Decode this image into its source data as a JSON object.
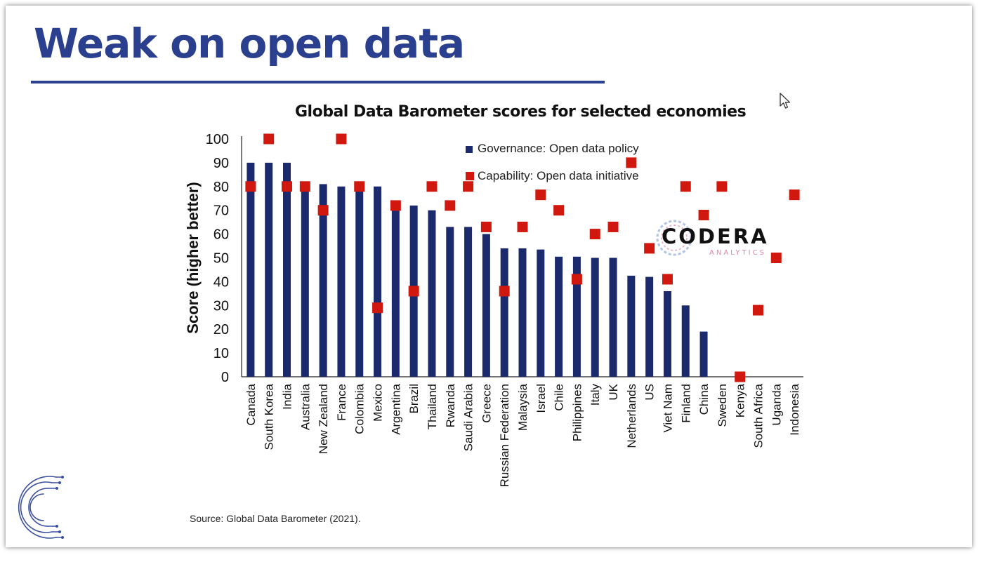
{
  "slide": {
    "title": "Weak on open data",
    "source": "Source: Global Data Barometer (2021).",
    "accent_color": "#2b3f8f"
  },
  "watermark": {
    "text": "CODERA",
    "subtext": "ANALYTICS"
  },
  "icons": {
    "cursor": "mouse-pointer-icon",
    "logo": "codera-c-logo-icon"
  },
  "chart_data": {
    "type": "bar",
    "title": "Global Data Barometer scores for selected economies",
    "ylabel": "Score (higher better)",
    "xlabel": "",
    "ylim": [
      0,
      100
    ],
    "yticks": [
      0,
      10,
      20,
      30,
      40,
      50,
      60,
      70,
      80,
      90,
      100
    ],
    "grid": false,
    "legend_position": "top-center",
    "categories": [
      "Canada",
      "South Korea",
      "India",
      "Australia",
      "New Zealand",
      "France",
      "Colombia",
      "Mexico",
      "Argentina",
      "Brazil",
      "Thailand",
      "Rwanda",
      "Saudi Arabia",
      "Greece",
      "Russian Federation",
      "Malaysia",
      "Israel",
      "Chile",
      "Philippines",
      "Italy",
      "UK",
      "Netherlands",
      "US",
      "Viet Nam",
      "Finland",
      "China",
      "Sweden",
      "Kenya",
      "South Africa",
      "Uganda",
      "Indonesia"
    ],
    "series": [
      {
        "name": "Governance: Open data policy",
        "type": "bar",
        "color": "#1a2a6c",
        "values": [
          90,
          90,
          90,
          80,
          81,
          80,
          80,
          80,
          72,
          72,
          70,
          63,
          63,
          60,
          54,
          54,
          53.5,
          50.5,
          50.5,
          50,
          50,
          42.5,
          42,
          36,
          30,
          19,
          0,
          0,
          0,
          0,
          0
        ]
      },
      {
        "name": "Capability: Open data initiative",
        "type": "scatter",
        "color": "#d0180f",
        "values": [
          80,
          100,
          80,
          80,
          70,
          100,
          80,
          29,
          72,
          36,
          80,
          72,
          80,
          63,
          36,
          63,
          76.5,
          70,
          41,
          60,
          63,
          90,
          54,
          41,
          80,
          68,
          80,
          0,
          28,
          50,
          76.5
        ]
      }
    ]
  }
}
